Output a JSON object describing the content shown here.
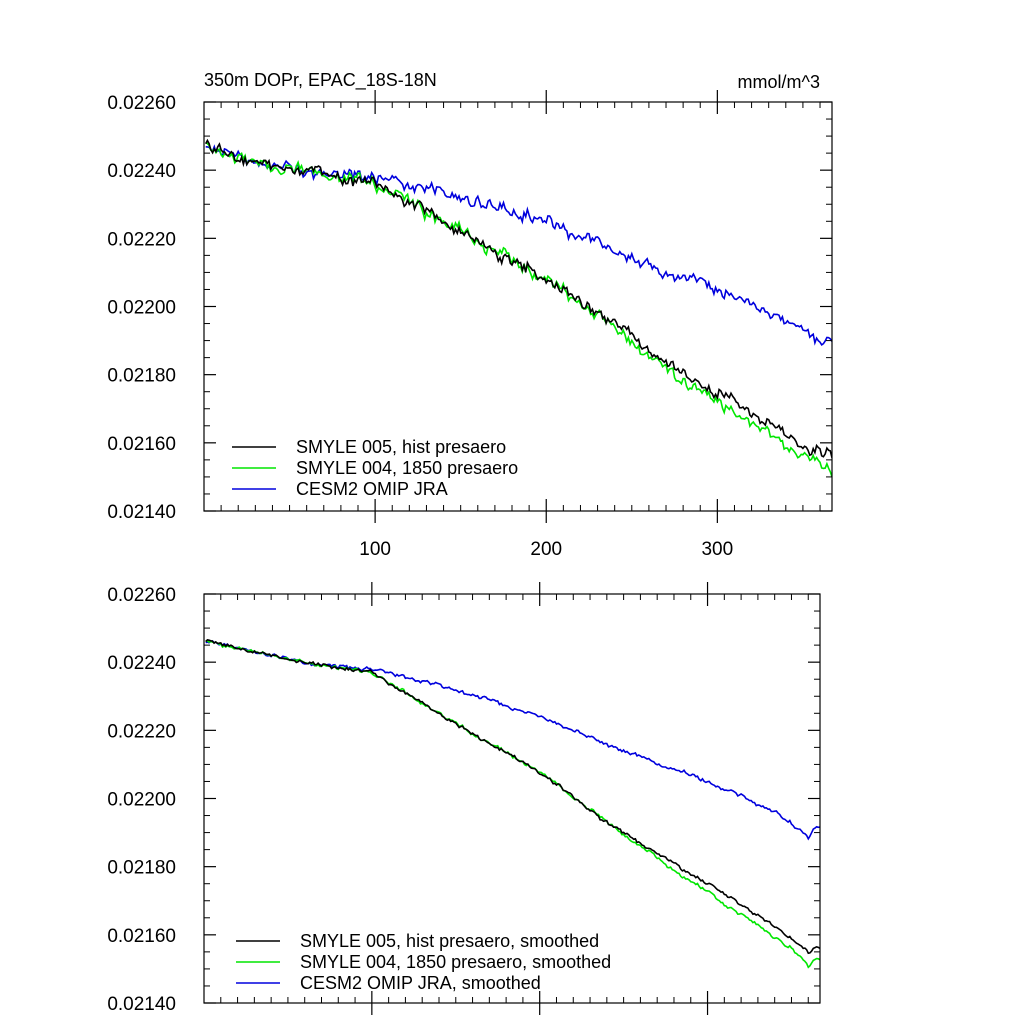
{
  "chart_data": [
    {
      "type": "line",
      "title": "350m DOPr, EPAC_18S-18N",
      "units": "mmol/m^3",
      "xlim": [
        0,
        367
      ],
      "ylim": [
        0.0214,
        0.0226
      ],
      "x_ticks": [
        100,
        200,
        300
      ],
      "x_tick_labels": [
        "100",
        "200",
        "300"
      ],
      "y_ticks": [
        0.0214,
        0.0216,
        0.0218,
        0.022,
        0.0222,
        0.0224,
        0.0226
      ],
      "y_tick_labels": [
        "0.02140",
        "0.02160",
        "0.02180",
        "0.02200",
        "0.02220",
        "0.02240",
        "0.02260"
      ],
      "legend_position": "lower-left",
      "noise": 1.8e-05,
      "series": [
        {
          "name": "SMYLE 005, hist presaero",
          "color": "#000000",
          "anchors": [
            [
              1,
              0.02247
            ],
            [
              30,
              0.02242
            ],
            [
              70,
              0.02239
            ],
            [
              100,
              0.02236
            ],
            [
              130,
              0.02228
            ],
            [
              160,
              0.02219
            ],
            [
              200,
              0.02208
            ],
            [
              240,
              0.02195
            ],
            [
              280,
              0.0218
            ],
            [
              320,
              0.02169
            ],
            [
              350,
              0.02159
            ],
            [
              367,
              0.02156
            ]
          ]
        },
        {
          "name": "SMYLE 004, 1850 presaero",
          "color": "#00e600",
          "anchors": [
            [
              1,
              0.02247
            ],
            [
              30,
              0.02242
            ],
            [
              70,
              0.02239
            ],
            [
              100,
              0.02236
            ],
            [
              130,
              0.02228
            ],
            [
              160,
              0.02219
            ],
            [
              200,
              0.02208
            ],
            [
              240,
              0.02194
            ],
            [
              280,
              0.02178
            ],
            [
              320,
              0.02166
            ],
            [
              350,
              0.02156
            ],
            [
              367,
              0.02152
            ]
          ]
        },
        {
          "name": "CESM2 OMIP JRA",
          "color": "#0000dd",
          "anchors": [
            [
              1,
              0.02247
            ],
            [
              30,
              0.02242
            ],
            [
              70,
              0.02239
            ],
            [
              100,
              0.02238
            ],
            [
              150,
              0.02232
            ],
            [
              200,
              0.02225
            ],
            [
              250,
              0.02214
            ],
            [
              300,
              0.02205
            ],
            [
              340,
              0.02196
            ],
            [
              360,
              0.0219
            ],
            [
              367,
              0.02191
            ]
          ]
        }
      ]
    },
    {
      "type": "line",
      "title": "",
      "xlim": [
        0,
        367
      ],
      "ylim": [
        0.0214,
        0.0226
      ],
      "x_ticks": [
        100,
        200,
        300
      ],
      "y_ticks": [
        0.0214,
        0.0216,
        0.0218,
        0.022,
        0.0222,
        0.0224,
        0.0226
      ],
      "y_tick_labels": [
        "0.02140",
        "0.02160",
        "0.02180",
        "0.02200",
        "0.02220",
        "0.02240",
        "0.02260"
      ],
      "legend_position": "lower-left",
      "noise": 6e-06,
      "series": [
        {
          "name": "SMYLE 005, hist presaero, smoothed",
          "color": "#000000",
          "anchors": [
            [
              4,
              0.02246
            ],
            [
              30,
              0.02243
            ],
            [
              70,
              0.02239
            ],
            [
              100,
              0.02237
            ],
            [
              130,
              0.02228
            ],
            [
              160,
              0.02219
            ],
            [
              200,
              0.02208
            ],
            [
              240,
              0.02193
            ],
            [
              280,
              0.02181
            ],
            [
              320,
              0.02169
            ],
            [
              350,
              0.02159
            ],
            [
              360,
              0.02155
            ],
            [
              365,
              0.02156
            ]
          ]
        },
        {
          "name": "SMYLE 004, 1850 presaero, smoothed",
          "color": "#00e600",
          "anchors": [
            [
              4,
              0.02246
            ],
            [
              30,
              0.02243
            ],
            [
              70,
              0.02239
            ],
            [
              100,
              0.02237
            ],
            [
              130,
              0.02228
            ],
            [
              160,
              0.02219
            ],
            [
              200,
              0.02208
            ],
            [
              240,
              0.02193
            ],
            [
              280,
              0.02179
            ],
            [
              320,
              0.02166
            ],
            [
              350,
              0.02156
            ],
            [
              360,
              0.02151
            ],
            [
              365,
              0.02153
            ]
          ]
        },
        {
          "name": "CESM2 OMIP JRA, smoothed",
          "color": "#0000dd",
          "anchors": [
            [
              4,
              0.02246
            ],
            [
              30,
              0.02243
            ],
            [
              70,
              0.02239
            ],
            [
              100,
              0.02238
            ],
            [
              150,
              0.02232
            ],
            [
              200,
              0.02224
            ],
            [
              250,
              0.02214
            ],
            [
              300,
              0.02205
            ],
            [
              340,
              0.02196
            ],
            [
              360,
              0.02189
            ],
            [
              365,
              0.02192
            ]
          ]
        }
      ]
    }
  ]
}
